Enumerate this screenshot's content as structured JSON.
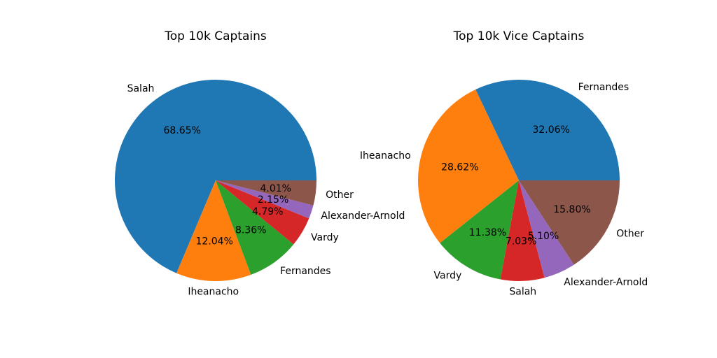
{
  "chart_data": [
    {
      "type": "pie",
      "title": "Top 10k Captains",
      "labels": [
        "Salah",
        "Iheanacho",
        "Fernandes",
        "Vardy",
        "Alexander-Arnold",
        "Other"
      ],
      "values": [
        68.65,
        12.04,
        8.36,
        4.79,
        2.15,
        4.01
      ],
      "value_labels": [
        "68.65%",
        "12.04%",
        "8.36%",
        "4.79%",
        "2.15%",
        "4.01%"
      ],
      "colors": [
        "#1f77b4",
        "#ff7f0e",
        "#2ca02c",
        "#d62728",
        "#9467bd",
        "#8c564b"
      ],
      "start_angle_deg": 0,
      "direction": "counterclockwise"
    },
    {
      "type": "pie",
      "title": "Top 10k Vice Captains",
      "labels": [
        "Fernandes",
        "Iheanacho",
        "Vardy",
        "Salah",
        "Alexander-Arnold",
        "Other"
      ],
      "values": [
        32.06,
        28.62,
        11.38,
        7.03,
        5.1,
        15.8
      ],
      "value_labels": [
        "32.06%",
        "28.62%",
        "11.38%",
        "7.03%",
        "5.10%",
        "15.80%"
      ],
      "colors": [
        "#1f77b4",
        "#ff7f0e",
        "#2ca02c",
        "#d62728",
        "#9467bd",
        "#8c564b"
      ],
      "start_angle_deg": 0,
      "direction": "counterclockwise"
    }
  ]
}
